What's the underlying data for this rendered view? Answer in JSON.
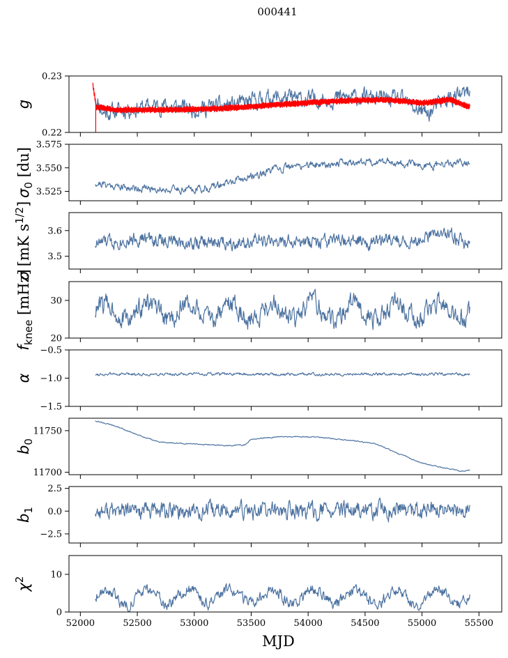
{
  "figure_title": "000441",
  "colors": {
    "series": "#4c72a0",
    "overlay": "#ff0000",
    "frame": "#000000"
  },
  "chart_data": [
    {
      "type": "line",
      "id": "g",
      "ylabel": "g",
      "ylabel_parts": {
        "main": "g",
        "sub": ""
      },
      "xlim": [
        51900,
        55700
      ],
      "ylim": [
        0.22,
        0.23
      ],
      "yticks": [
        0.22,
        0.23
      ],
      "ytick_labels": [
        "0.22",
        "0.23"
      ],
      "xticks": [
        52000,
        52500,
        53000,
        53500,
        54000,
        54500,
        55000,
        55500
      ],
      "show_xticklabels": false,
      "series": [
        {
          "name": "g (blue)",
          "x_start": 52130,
          "x_end": 55420,
          "base_points": [
            [
              52130,
              0.2262
            ],
            [
              52200,
              0.2235
            ],
            [
              52400,
              0.224
            ],
            [
              52700,
              0.2248
            ],
            [
              53000,
              0.2242
            ],
            [
              53400,
              0.225
            ],
            [
              53700,
              0.2262
            ],
            [
              54000,
              0.2258
            ],
            [
              54400,
              0.2262
            ],
            [
              54800,
              0.2258
            ],
            [
              55050,
              0.2232
            ],
            [
              55200,
              0.2258
            ],
            [
              55420,
              0.227
            ]
          ],
          "noise": 0.0012,
          "seed": 11,
          "color": "#4c72a0"
        },
        {
          "name": "g model (red)",
          "x_start": 52110,
          "x_end": 55420,
          "base_points": [
            [
              52110,
              0.2285
            ],
            [
              52140,
              0.2245
            ],
            [
              52300,
              0.224
            ],
            [
              52800,
              0.224
            ],
            [
              53300,
              0.2243
            ],
            [
              53800,
              0.225
            ],
            [
              54300,
              0.2256
            ],
            [
              54700,
              0.2258
            ],
            [
              55000,
              0.2252
            ],
            [
              55250,
              0.2258
            ],
            [
              55420,
              0.2245
            ]
          ],
          "noise": 0.0004,
          "seed": 5,
          "color": "#ff0000",
          "dense": true
        }
      ]
    },
    {
      "type": "line",
      "id": "sigma0",
      "ylabel": "σ0 [du]",
      "ylabel_parts": {
        "main": "σ",
        "sub": "0",
        "unit": " [du]"
      },
      "xlim": [
        51900,
        55700
      ],
      "ylim": [
        3.515,
        3.575
      ],
      "yticks": [
        3.525,
        3.55,
        3.575
      ],
      "ytick_labels": [
        "3.525",
        "3.550",
        "3.575"
      ],
      "xticks": [
        52000,
        52500,
        53000,
        53500,
        54000,
        54500,
        55000,
        55500
      ],
      "show_xticklabels": false,
      "series": [
        {
          "name": "sigma0",
          "x_start": 52130,
          "x_end": 55420,
          "base_points": [
            [
              52130,
              3.534
            ],
            [
              52400,
              3.529
            ],
            [
              52800,
              3.527
            ],
            [
              53100,
              3.528
            ],
            [
              53400,
              3.537
            ],
            [
              53700,
              3.548
            ],
            [
              54000,
              3.553
            ],
            [
              54400,
              3.556
            ],
            [
              54700,
              3.557
            ],
            [
              55000,
              3.552
            ],
            [
              55420,
              3.555
            ]
          ],
          "noise": 0.0032,
          "seed": 21,
          "color": "#4c72a0"
        }
      ]
    },
    {
      "type": "line",
      "id": "sigma_w",
      "ylabel": "σ [mK s^1/2]",
      "ylabel_parts": {
        "main": "σ",
        "sub": "",
        "unit": " [mK s",
        "sup": "1/2",
        "unit_end": "]"
      },
      "xlim": [
        51900,
        55700
      ],
      "ylim": [
        3.45,
        3.67
      ],
      "yticks": [
        3.5,
        3.6
      ],
      "ytick_labels": [
        "3.5",
        "3.6"
      ],
      "xticks": [
        52000,
        52500,
        53000,
        53500,
        54000,
        54500,
        55000,
        55500
      ],
      "show_xticklabels": false,
      "series": [
        {
          "name": "sigma white",
          "x_start": 52130,
          "x_end": 55420,
          "base_points": [
            [
              52130,
              3.55
            ],
            [
              52500,
              3.57
            ],
            [
              53000,
              3.55
            ],
            [
              53500,
              3.56
            ],
            [
              54000,
              3.55
            ],
            [
              54500,
              3.56
            ],
            [
              55000,
              3.56
            ],
            [
              55200,
              3.6
            ],
            [
              55420,
              3.54
            ]
          ],
          "noise": 0.022,
          "seed": 33,
          "color": "#4c72a0"
        }
      ]
    },
    {
      "type": "line",
      "id": "fknee",
      "ylabel": "f_knee [mHz]",
      "ylabel_parts": {
        "main": "f",
        "sub": "knee",
        "unit": " [mHz]"
      },
      "xlim": [
        51900,
        55700
      ],
      "ylim": [
        20,
        35
      ],
      "yticks": [
        20,
        30
      ],
      "ytick_labels": [
        "20",
        "30"
      ],
      "xticks": [
        52000,
        52500,
        53000,
        53500,
        54000,
        54500,
        55000,
        55500
      ],
      "show_xticklabels": false,
      "series": [
        {
          "name": "fknee",
          "x_start": 52130,
          "x_end": 55420,
          "base_points": [
            [
              52130,
              27
            ],
            [
              55420,
              27
            ]
          ],
          "noise": 2.2,
          "seed": 44,
          "color": "#4c72a0",
          "periodic_amp": 2.2,
          "period": 365
        }
      ]
    },
    {
      "type": "line",
      "id": "alpha",
      "ylabel": "α",
      "ylabel_parts": {
        "main": "α",
        "sub": ""
      },
      "xlim": [
        51900,
        55700
      ],
      "ylim": [
        -1.5,
        -0.5
      ],
      "yticks": [
        -1.5,
        -1.0,
        -0.5
      ],
      "ytick_labels": [
        "−1.5",
        "−1.0",
        "−0.5"
      ],
      "xticks": [
        52000,
        52500,
        53000,
        53500,
        54000,
        54500,
        55000,
        55500
      ],
      "show_xticklabels": false,
      "series": [
        {
          "name": "alpha",
          "x_start": 52130,
          "x_end": 55420,
          "base_points": [
            [
              52130,
              -0.93
            ],
            [
              55420,
              -0.93
            ]
          ],
          "noise": 0.02,
          "seed": 55,
          "color": "#4c72a0"
        }
      ]
    },
    {
      "type": "line",
      "id": "b0",
      "ylabel": "b0",
      "ylabel_parts": {
        "main": "b",
        "sub": "0"
      },
      "xlim": [
        51900,
        55700
      ],
      "ylim": [
        11697,
        11765
      ],
      "yticks": [
        11700,
        11750
      ],
      "ytick_labels": [
        "11700",
        "11750"
      ],
      "xticks": [
        52000,
        52500,
        53000,
        53500,
        54000,
        54500,
        55000,
        55500
      ],
      "show_xticklabels": false,
      "series": [
        {
          "name": "b0",
          "x_start": 52130,
          "x_end": 55420,
          "base_points": [
            [
              52130,
              11762
            ],
            [
              52300,
              11756
            ],
            [
              52500,
              11745
            ],
            [
              52700,
              11736
            ],
            [
              53000,
              11734
            ],
            [
              53300,
              11732
            ],
            [
              53450,
              11733
            ],
            [
              53500,
              11740
            ],
            [
              53800,
              11743
            ],
            [
              54100,
              11742
            ],
            [
              54400,
              11738
            ],
            [
              54600,
              11734
            ],
            [
              54800,
              11722
            ],
            [
              55000,
              11711
            ],
            [
              55200,
              11705
            ],
            [
              55350,
              11701
            ],
            [
              55420,
              11703
            ]
          ],
          "noise": 0.5,
          "seed": 66,
          "color": "#4c72a0"
        }
      ]
    },
    {
      "type": "line",
      "id": "b1",
      "ylabel": "b1",
      "ylabel_parts": {
        "main": "b",
        "sub": "1"
      },
      "xlim": [
        51900,
        55700
      ],
      "ylim": [
        -3.5,
        2.7
      ],
      "yticks": [
        -2.5,
        0.0,
        2.5
      ],
      "ytick_labels": [
        "−2.5",
        "0.0",
        "2.5"
      ],
      "xticks": [
        52000,
        52500,
        53000,
        53500,
        54000,
        54500,
        55000,
        55500
      ],
      "show_xticklabels": false,
      "series": [
        {
          "name": "b1",
          "x_start": 52130,
          "x_end": 55420,
          "base_points": [
            [
              52130,
              0
            ],
            [
              55420,
              0
            ]
          ],
          "noise": 0.75,
          "seed": 77,
          "color": "#4c72a0"
        }
      ]
    },
    {
      "type": "line",
      "id": "chi2",
      "ylabel": "χ2",
      "ylabel_parts": {
        "main": "χ",
        "sub": "",
        "sup": "2"
      },
      "xlim": [
        51900,
        55700
      ],
      "ylim": [
        0,
        15
      ],
      "yticks": [
        0,
        10
      ],
      "ytick_labels": [
        "0",
        "10"
      ],
      "xticks": [
        52000,
        52500,
        53000,
        53500,
        54000,
        54500,
        55000,
        55500
      ],
      "xtick_labels": [
        "52000",
        "52500",
        "53000",
        "53500",
        "54000",
        "54500",
        "55000",
        "55500"
      ],
      "show_xticklabels": true,
      "xlabel": "MJD",
      "series": [
        {
          "name": "chi2",
          "x_start": 52130,
          "x_end": 55420,
          "base_points": [
            [
              52130,
              4
            ],
            [
              55420,
              4
            ]
          ],
          "noise": 1.2,
          "seed": 88,
          "color": "#4c72a0",
          "periodic_amp": 2.0,
          "period": 365
        }
      ]
    }
  ]
}
